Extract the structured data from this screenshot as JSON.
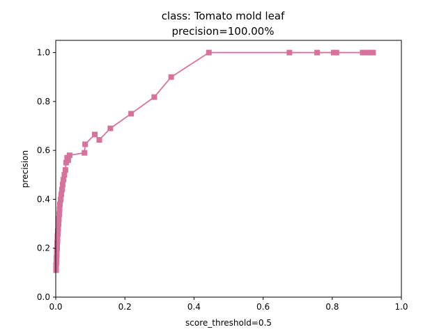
{
  "chart_data": {
    "type": "line",
    "title_line1": "class: Tomato mold leaf",
    "title_line2": "precision=100.00%",
    "xlabel": "score_threshold=0.5",
    "ylabel": "precision",
    "xlim": [
      0,
      1
    ],
    "ylim": [
      0,
      1.05
    ],
    "xticks": [
      "0.0",
      "0.2",
      "0.4",
      "0.6",
      "0.8",
      "1.0"
    ],
    "yticks": [
      "0.0",
      "0.2",
      "0.4",
      "0.6",
      "0.8",
      "1.0"
    ],
    "grid": false,
    "line_color": "#d6729b",
    "marker": "square",
    "x": [
      0.001,
      0.001,
      0.001,
      0.002,
      0.002,
      0.002,
      0.003,
      0.003,
      0.003,
      0.004,
      0.004,
      0.004,
      0.005,
      0.005,
      0.005,
      0.006,
      0.006,
      0.007,
      0.007,
      0.008,
      0.009,
      0.01,
      0.011,
      0.012,
      0.014,
      0.016,
      0.018,
      0.02,
      0.022,
      0.025,
      0.028,
      0.03,
      0.033,
      0.036,
      0.04,
      0.083,
      0.085,
      0.113,
      0.126,
      0.158,
      0.218,
      0.285,
      0.334,
      0.443,
      0.676,
      0.756,
      0.804,
      0.812,
      0.888,
      0.9,
      0.91,
      0.918
    ],
    "y": [
      0.11,
      0.12,
      0.13,
      0.14,
      0.15,
      0.16,
      0.17,
      0.18,
      0.19,
      0.2,
      0.21,
      0.22,
      0.23,
      0.24,
      0.25,
      0.26,
      0.27,
      0.28,
      0.29,
      0.3,
      0.32,
      0.34,
      0.36,
      0.38,
      0.4,
      0.42,
      0.44,
      0.46,
      0.48,
      0.5,
      0.52,
      0.55,
      0.57,
      0.56,
      0.58,
      0.59,
      0.625,
      0.665,
      0.643,
      0.69,
      0.75,
      0.818,
      0.9,
      1.0,
      1.0,
      1.0,
      1.0,
      1.0,
      1.0,
      1.0,
      1.0,
      1.0
    ]
  }
}
